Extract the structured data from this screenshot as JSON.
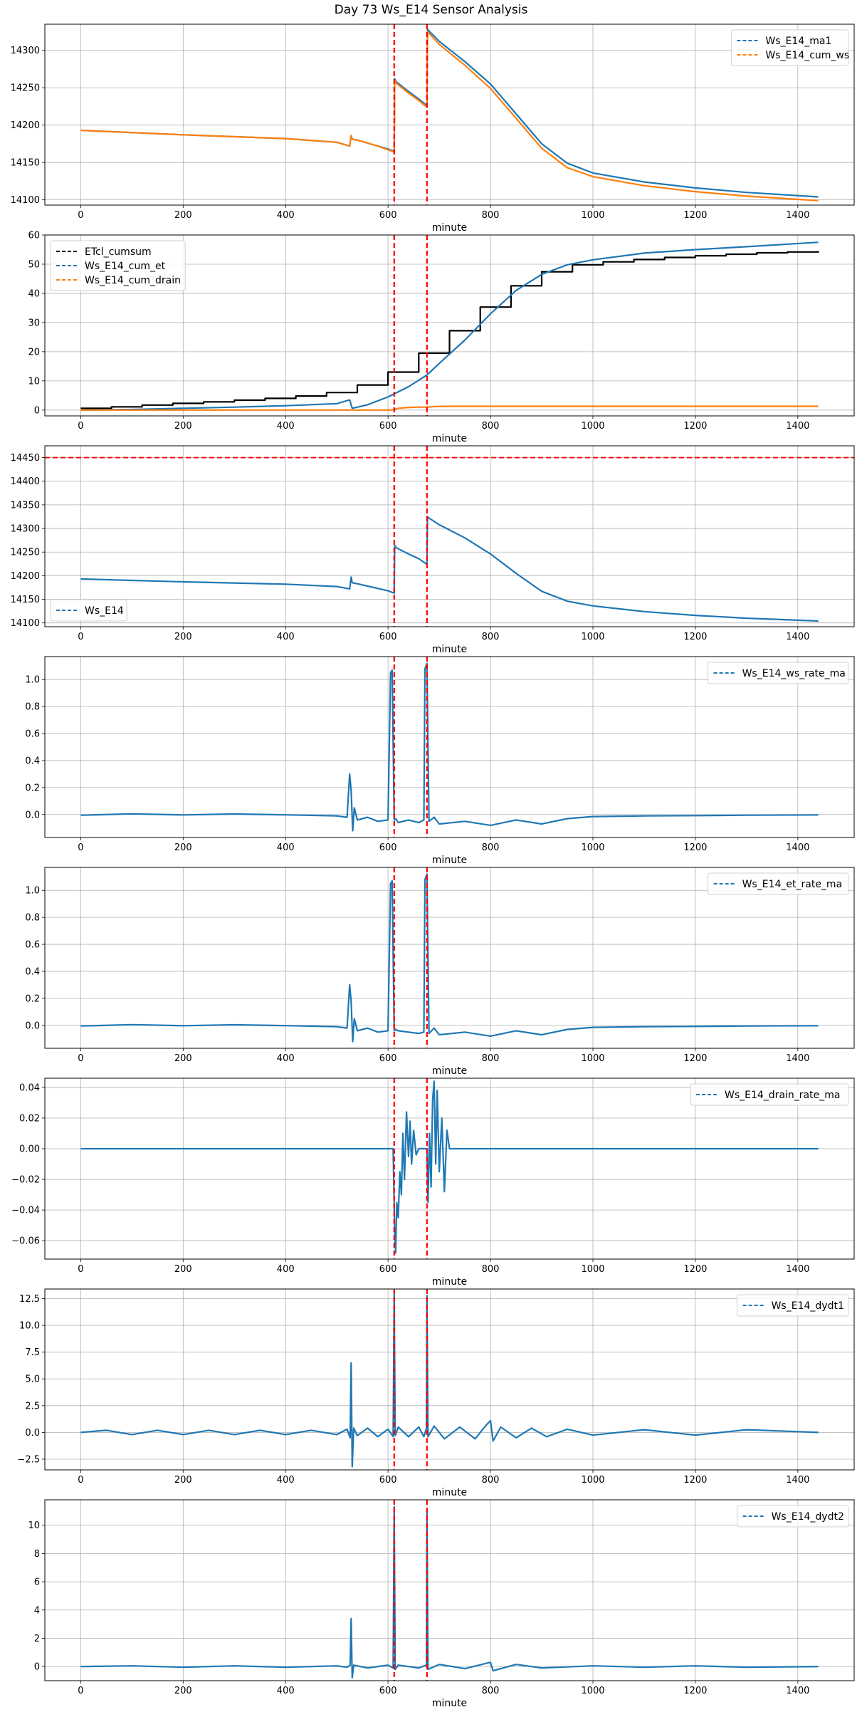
{
  "title": "Day 73 Ws_E14 Sensor Analysis",
  "colors": {
    "blue": "#1f77b4",
    "orange": "#ff7f0e",
    "black": "#000000",
    "red": "#ff0000",
    "grid": "#b0b0b0"
  },
  "chart_data": [
    {
      "type": "line",
      "xlabel": "minute",
      "xlim": [
        -70,
        1510
      ],
      "ylim": [
        14093,
        14335
      ],
      "xticks": [
        0,
        200,
        400,
        600,
        800,
        1000,
        1200,
        1400
      ],
      "yticks": [
        14100,
        14150,
        14200,
        14250,
        14300
      ],
      "ytick_labels": [
        "14100",
        "14150",
        "14200",
        "14250",
        "14300"
      ],
      "legend": "upper right",
      "vlines": [
        612,
        676
      ],
      "hlines": [],
      "series": [
        {
          "name": "Ws_E14_ma1",
          "color": "#1f77b4",
          "style": "dashed",
          "legend": true,
          "x": [
            0,
            200,
            400,
            500,
            525,
            528,
            530,
            540,
            560,
            580,
            600,
            612,
            613,
            616,
            640,
            660,
            676,
            677,
            680,
            700,
            750,
            800,
            850,
            900,
            950,
            1000,
            1100,
            1200,
            1300,
            1440
          ],
          "y": [
            14193,
            14187,
            14182,
            14177,
            14172,
            14186,
            14181,
            14180,
            14176,
            14172,
            14168,
            14165,
            14262,
            14258,
            14245,
            14235,
            14226,
            14328,
            14326,
            14312,
            14285,
            14255,
            14215,
            14175,
            14149,
            14136,
            14124,
            14116,
            14110,
            14104
          ]
        },
        {
          "name": "Ws_E14_cum_ws",
          "color": "#ff7f0e",
          "style": "solid",
          "legend": true,
          "x": [
            0,
            200,
            400,
            500,
            525,
            528,
            530,
            540,
            560,
            580,
            600,
            612,
            613,
            616,
            640,
            660,
            676,
            677,
            680,
            700,
            750,
            800,
            850,
            900,
            950,
            1000,
            1100,
            1200,
            1300,
            1440
          ],
          "y": [
            14193,
            14187,
            14182,
            14177,
            14172,
            14186,
            14181,
            14180,
            14176,
            14172,
            14167,
            14164,
            14260,
            14256,
            14243,
            14233,
            14224,
            14325,
            14323,
            14308,
            14280,
            14249,
            14209,
            14169,
            14143,
            14131,
            14119,
            14111,
            14105,
            14099
          ]
        }
      ]
    },
    {
      "type": "line",
      "xlabel": "minute",
      "xlim": [
        -70,
        1510
      ],
      "ylim": [
        -2,
        60
      ],
      "xticks": [
        0,
        200,
        400,
        600,
        800,
        1000,
        1200,
        1400
      ],
      "yticks": [
        0,
        10,
        20,
        30,
        40,
        50,
        60
      ],
      "ytick_labels": [
        "0",
        "10",
        "20",
        "30",
        "40",
        "50",
        "60"
      ],
      "legend": "upper left",
      "vlines": [
        612,
        676
      ],
      "hlines": [],
      "series": [
        {
          "name": "ETcl_cumsum",
          "color": "#000000",
          "style": "step",
          "legend": true,
          "x": [
            0,
            60,
            120,
            180,
            240,
            300,
            360,
            420,
            480,
            540,
            600,
            660,
            720,
            780,
            840,
            900,
            960,
            1020,
            1080,
            1140,
            1200,
            1260,
            1320,
            1380,
            1440
          ],
          "y": [
            0.6,
            1.1,
            1.7,
            2.3,
            2.8,
            3.4,
            4.0,
            4.8,
            6.0,
            8.6,
            13.0,
            19.5,
            27.2,
            35.3,
            42.6,
            47.4,
            49.8,
            50.8,
            51.6,
            52.3,
            52.9,
            53.4,
            53.9,
            54.2,
            54.5
          ]
        },
        {
          "name": "Ws_E14_cum_et",
          "color": "#1f77b4",
          "style": "dashed",
          "legend": true,
          "x": [
            0,
            100,
            200,
            300,
            400,
            500,
            525,
            530,
            560,
            600,
            640,
            676,
            700,
            750,
            800,
            850,
            900,
            950,
            1000,
            1100,
            1200,
            1300,
            1440
          ],
          "y": [
            0,
            0.2,
            0.6,
            1.0,
            1.5,
            2.2,
            3.5,
            0.6,
            1.8,
            4.5,
            8.0,
            12.0,
            16.0,
            24.0,
            33.0,
            41.0,
            46.5,
            49.8,
            51.5,
            53.8,
            55.0,
            56.0,
            57.5
          ]
        },
        {
          "name": "Ws_E14_cum_drain",
          "color": "#ff7f0e",
          "style": "solid",
          "legend": true,
          "x": [
            0,
            500,
            605,
            612,
            620,
            640,
            660,
            676,
            690,
            720,
            1440
          ],
          "y": [
            0,
            0,
            0,
            0.2,
            0.6,
            0.9,
            1.0,
            1.0,
            1.2,
            1.3,
            1.3
          ]
        }
      ]
    },
    {
      "type": "line",
      "xlabel": "minute",
      "xlim": [
        -70,
        1510
      ],
      "ylim": [
        14092,
        14475
      ],
      "xticks": [
        0,
        200,
        400,
        600,
        800,
        1000,
        1200,
        1400
      ],
      "yticks": [
        14100,
        14150,
        14200,
        14250,
        14300,
        14350,
        14400,
        14450
      ],
      "ytick_labels": [
        "14100",
        "14150",
        "14200",
        "14250",
        "14300",
        "14350",
        "14400",
        "14450"
      ],
      "legend": "lower left",
      "vlines": [
        612,
        676
      ],
      "hlines": [
        14450
      ],
      "series": [
        {
          "name": "Ws_E14",
          "color": "#1f77b4",
          "style": "dashed",
          "legend": true,
          "x": [
            0,
            200,
            400,
            500,
            525,
            528,
            530,
            540,
            560,
            580,
            600,
            612,
            613,
            616,
            640,
            660,
            676,
            677,
            680,
            700,
            750,
            800,
            850,
            900,
            950,
            1000,
            1100,
            1200,
            1300,
            1440
          ],
          "y": [
            14193,
            14187,
            14182,
            14177,
            14172,
            14197,
            14185,
            14183,
            14178,
            14173,
            14168,
            14163,
            14264,
            14259,
            14246,
            14236,
            14224,
            14325,
            14322,
            14308,
            14280,
            14246,
            14205,
            14167,
            14146,
            14136,
            14124,
            14116,
            14110,
            14104
          ]
        }
      ]
    },
    {
      "type": "line",
      "xlabel": "minute",
      "xlim": [
        -70,
        1510
      ],
      "ylim": [
        -0.17,
        1.17
      ],
      "xticks": [
        0,
        200,
        400,
        600,
        800,
        1000,
        1200,
        1400
      ],
      "yticks": [
        0,
        0.2,
        0.4,
        0.6,
        0.8,
        1.0
      ],
      "ytick_labels": [
        "0.0",
        "0.2",
        "0.4",
        "0.6",
        "0.8",
        "1.0"
      ],
      "legend": "upper right",
      "vlines": [
        612,
        676
      ],
      "hlines": [],
      "series": [
        {
          "name": "Ws_E14_ws_rate_ma",
          "color": "#1f77b4",
          "style": "dashed",
          "legend": true,
          "x": [
            0,
            100,
            200,
            300,
            400,
            500,
            520,
            525,
            528,
            531,
            534,
            540,
            560,
            580,
            600,
            605,
            608,
            612,
            615,
            620,
            640,
            660,
            670,
            672,
            676,
            680,
            690,
            700,
            750,
            800,
            850,
            900,
            950,
            1000,
            1100,
            1200,
            1300,
            1440
          ],
          "y": [
            -0.005,
            0.005,
            -0.003,
            0.004,
            -0.002,
            -0.01,
            -0.02,
            0.3,
            0.18,
            -0.12,
            0.05,
            -0.04,
            -0.02,
            -0.05,
            -0.04,
            1.05,
            1.07,
            -0.04,
            -0.03,
            -0.06,
            -0.04,
            -0.06,
            -0.04,
            1.08,
            1.12,
            -0.05,
            -0.02,
            -0.07,
            -0.05,
            -0.08,
            -0.04,
            -0.07,
            -0.03,
            -0.015,
            -0.01,
            -0.008,
            -0.005,
            -0.003
          ]
        }
      ]
    },
    {
      "type": "line",
      "xlabel": "minute",
      "xlim": [
        -70,
        1510
      ],
      "ylim": [
        -0.17,
        1.17
      ],
      "xticks": [
        0,
        200,
        400,
        600,
        800,
        1000,
        1200,
        1400
      ],
      "yticks": [
        0,
        0.2,
        0.4,
        0.6,
        0.8,
        1.0
      ],
      "ytick_labels": [
        "0.0",
        "0.2",
        "0.4",
        "0.6",
        "0.8",
        "1.0"
      ],
      "legend": "upper right",
      "vlines": [
        612,
        676
      ],
      "hlines": [],
      "series": [
        {
          "name": "Ws_E14_et_rate_ma",
          "color": "#1f77b4",
          "style": "dashed",
          "legend": true,
          "x": [
            0,
            100,
            200,
            300,
            400,
            500,
            520,
            525,
            528,
            531,
            534,
            540,
            560,
            580,
            600,
            605,
            608,
            612,
            615,
            620,
            640,
            660,
            670,
            672,
            676,
            680,
            690,
            700,
            750,
            800,
            850,
            900,
            950,
            1000,
            1100,
            1200,
            1300,
            1440
          ],
          "y": [
            -0.005,
            0.005,
            -0.003,
            0.004,
            -0.002,
            -0.01,
            -0.02,
            0.3,
            0.18,
            -0.12,
            0.05,
            -0.04,
            -0.02,
            -0.05,
            -0.04,
            1.05,
            1.07,
            -0.04,
            -0.03,
            -0.04,
            -0.05,
            -0.06,
            -0.05,
            1.08,
            1.12,
            -0.06,
            -0.02,
            -0.07,
            -0.05,
            -0.08,
            -0.04,
            -0.07,
            -0.03,
            -0.015,
            -0.01,
            -0.008,
            -0.005,
            -0.003
          ]
        }
      ]
    },
    {
      "type": "line",
      "xlabel": "minute",
      "xlim": [
        -70,
        1510
      ],
      "ylim": [
        -0.072,
        0.046
      ],
      "xticks": [
        0,
        200,
        400,
        600,
        800,
        1000,
        1200,
        1400
      ],
      "yticks": [
        -0.06,
        -0.04,
        -0.02,
        0,
        0.02,
        0.04
      ],
      "ytick_labels": [
        "−0.06",
        "−0.04",
        "−0.02",
        "0.00",
        "0.02",
        "0.04"
      ],
      "legend": "upper right",
      "vlines": [
        612,
        676
      ],
      "hlines": [],
      "series": [
        {
          "name": "Ws_E14_drain_rate_ma",
          "color": "#1f77b4",
          "style": "dashed",
          "legend": true,
          "x": [
            0,
            605,
            610,
            613,
            615,
            617,
            620,
            623,
            626,
            629,
            632,
            636,
            640,
            643,
            646,
            650,
            655,
            660,
            670,
            676,
            678,
            681,
            684,
            687,
            690,
            693,
            696,
            700,
            705,
            710,
            715,
            720,
            1440
          ],
          "y": [
            0,
            0,
            0,
            -0.055,
            -0.068,
            -0.035,
            -0.045,
            -0.015,
            -0.03,
            0.01,
            -0.02,
            0.024,
            -0.005,
            0.018,
            -0.01,
            0.012,
            -0.004,
            0,
            0,
            0,
            -0.035,
            0.01,
            -0.025,
            0.032,
            0.044,
            -0.01,
            0.038,
            -0.015,
            0.02,
            -0.028,
            0.012,
            0,
            0
          ]
        }
      ]
    },
    {
      "type": "line",
      "xlabel": "minute",
      "xlim": [
        -70,
        1510
      ],
      "ylim": [
        -3.5,
        13.4
      ],
      "xticks": [
        0,
        200,
        400,
        600,
        800,
        1000,
        1200,
        1400
      ],
      "yticks": [
        -2.5,
        0,
        2.5,
        5,
        7.5,
        10,
        12.5
      ],
      "ytick_labels": [
        "−2.5",
        "0.0",
        "2.5",
        "5.0",
        "7.5",
        "10.0",
        "12.5"
      ],
      "legend": "upper right",
      "vlines": [
        612,
        676
      ],
      "hlines": [],
      "series": [
        {
          "name": "Ws_E14_dydt1",
          "color": "#1f77b4",
          "style": "dashed",
          "legend": true,
          "x": [
            0,
            50,
            100,
            150,
            200,
            250,
            300,
            350,
            400,
            450,
            500,
            520,
            526,
            528,
            530,
            533,
            540,
            560,
            580,
            600,
            610,
            612,
            614,
            620,
            640,
            660,
            670,
            675,
            676,
            678,
            690,
            710,
            740,
            770,
            790,
            800,
            805,
            820,
            850,
            880,
            910,
            950,
            1000,
            1100,
            1200,
            1300,
            1440
          ],
          "y": [
            0,
            0.2,
            -0.2,
            0.2,
            -0.2,
            0.2,
            -0.2,
            0.2,
            -0.2,
            0.2,
            -0.2,
            0.3,
            -0.5,
            6.5,
            -3.2,
            0.4,
            -0.3,
            0.4,
            -0.4,
            0.3,
            -0.4,
            13.0,
            -0.3,
            0.5,
            -0.4,
            0.5,
            -0.4,
            0.4,
            12.8,
            -0.4,
            0.6,
            -0.6,
            0.5,
            -0.6,
            0.6,
            1.1,
            -0.8,
            0.5,
            -0.5,
            0.4,
            -0.4,
            0.3,
            -0.25,
            0.25,
            -0.25,
            0.25,
            0
          ]
        }
      ]
    },
    {
      "type": "line",
      "xlabel": "minute",
      "xlim": [
        -70,
        1510
      ],
      "ylim": [
        -1.0,
        11.8
      ],
      "xticks": [
        0,
        200,
        400,
        600,
        800,
        1000,
        1200,
        1400
      ],
      "yticks": [
        0,
        2,
        4,
        6,
        8,
        10
      ],
      "ytick_labels": [
        "0",
        "2",
        "4",
        "6",
        "8",
        "10"
      ],
      "legend": "upper right",
      "vlines": [
        612,
        676
      ],
      "hlines": [],
      "series": [
        {
          "name": "Ws_E14_dydt2",
          "color": "#1f77b4",
          "style": "dashed",
          "legend": true,
          "x": [
            0,
            100,
            200,
            300,
            400,
            500,
            520,
            526,
            528,
            530,
            533,
            560,
            600,
            610,
            612,
            614,
            620,
            660,
            675,
            676,
            678,
            700,
            750,
            800,
            805,
            850,
            900,
            1000,
            1100,
            1200,
            1300,
            1440
          ],
          "y": [
            0,
            0.05,
            -0.05,
            0.05,
            -0.05,
            0.05,
            -0.05,
            0.1,
            3.4,
            -0.8,
            0.1,
            -0.1,
            0.1,
            -0.1,
            11.3,
            -0.2,
            0.1,
            -0.1,
            0.1,
            11.0,
            -0.2,
            0.15,
            -0.15,
            0.3,
            -0.3,
            0.15,
            -0.1,
            0.05,
            -0.05,
            0.05,
            -0.05,
            0
          ]
        }
      ]
    }
  ]
}
